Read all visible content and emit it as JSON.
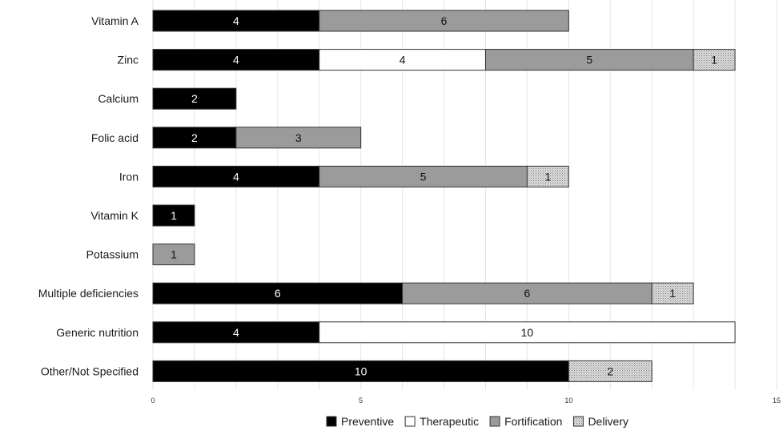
{
  "chart_data": {
    "type": "bar",
    "orientation": "horizontal",
    "stacked": true,
    "categories": [
      "Vitamin A",
      "Zinc",
      "Calcium",
      "Folic acid",
      "Iron",
      "Vitamin K",
      "Potassium",
      "Multiple deficiencies",
      "Generic nutrition",
      "Other/Not Specified"
    ],
    "series": [
      {
        "name": "Preventive",
        "color": "#000000",
        "pattern": "solid",
        "values": [
          4,
          4,
          2,
          2,
          4,
          1,
          0,
          6,
          4,
          10
        ]
      },
      {
        "name": "Therapeutic",
        "color": "#ffffff",
        "pattern": "solid",
        "values": [
          0,
          4,
          0,
          0,
          0,
          0,
          0,
          0,
          10,
          0
        ]
      },
      {
        "name": "Fortification",
        "color": "#9b9b9b",
        "pattern": "solid",
        "values": [
          6,
          5,
          0,
          3,
          5,
          0,
          1,
          6,
          0,
          0
        ]
      },
      {
        "name": "Delivery",
        "color": "#cfcfcf",
        "pattern": "dotted",
        "values": [
          0,
          1,
          0,
          0,
          1,
          0,
          0,
          1,
          0,
          2
        ]
      }
    ],
    "xticks": [
      0,
      5,
      10,
      15
    ],
    "xlim": [
      0,
      15
    ],
    "xlabel": "",
    "ylabel": "",
    "title": "",
    "grid": "vertical-minor",
    "legend": "bottom",
    "data_labels": true
  }
}
